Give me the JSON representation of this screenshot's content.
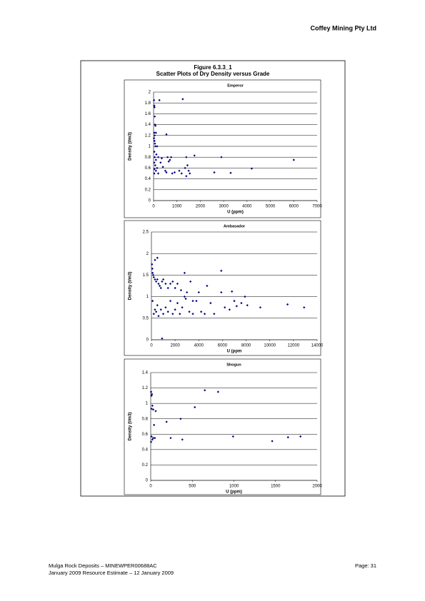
{
  "header": {
    "company": "Coffey Mining Pty Ltd"
  },
  "figure": {
    "number": "Figure 6.3.3_1",
    "title": "Scatter Plots of Dry Density versus Grade"
  },
  "chart_data": [
    {
      "type": "scatter",
      "title": "Emperor",
      "x_label": "U (ppm)",
      "y_label": "Density (t/m3)",
      "color": "#000080",
      "grid": true,
      "xlim": [
        0,
        7000
      ],
      "xticks": [
        0,
        1000,
        2000,
        3000,
        4000,
        5000,
        6000,
        7000
      ],
      "ylim": [
        0,
        2
      ],
      "yticks": [
        0,
        0.2,
        0.4,
        0.6,
        0.8,
        1,
        1.2,
        1.4,
        1.6,
        1.8,
        2
      ],
      "x": [
        20,
        30,
        40,
        50,
        60,
        80,
        30,
        50,
        100,
        20,
        40,
        60,
        80,
        150,
        30,
        120,
        200,
        50,
        100,
        30,
        70,
        150,
        40,
        100,
        200,
        30,
        300,
        350,
        400,
        500,
        550,
        600,
        650,
        700,
        750,
        800,
        900,
        1100,
        1200,
        1350,
        1400,
        1400,
        1450,
        1500,
        1550,
        1750,
        550,
        250,
        1250,
        2600,
        2900,
        3300,
        4200,
        6000
      ],
      "values": [
        1.85,
        1.75,
        1.72,
        1.55,
        1.4,
        1.38,
        1.25,
        1.2,
        1.25,
        1.15,
        1.1,
        1.05,
        1.0,
        1.0,
        0.9,
        0.85,
        0.8,
        0.8,
        0.75,
        0.7,
        0.65,
        0.6,
        0.58,
        0.55,
        0.5,
        0.5,
        0.7,
        0.78,
        0.62,
        0.55,
        0.52,
        0.8,
        0.72,
        0.75,
        0.8,
        0.5,
        0.52,
        0.55,
        0.5,
        0.6,
        0.45,
        0.8,
        0.65,
        0.55,
        0.5,
        0.83,
        1.22,
        1.85,
        1.87,
        0.52,
        0.8,
        0.51,
        0.59,
        0.75
      ]
    },
    {
      "type": "scatter",
      "title": "Ambasador",
      "x_label": "U (ppm",
      "y_label": "Density (t/m3)",
      "color": "#000080",
      "grid": true,
      "xlim": [
        0,
        14000
      ],
      "xticks": [
        0,
        2000,
        4000,
        6000,
        8000,
        10000,
        12000,
        14000
      ],
      "ylim": [
        0,
        2.5
      ],
      "yticks": [
        0,
        0.5,
        1,
        1.5,
        2,
        2.5
      ],
      "x": [
        50,
        80,
        100,
        150,
        200,
        300,
        400,
        500,
        600,
        700,
        800,
        900,
        1000,
        1200,
        1400,
        1600,
        1800,
        2000,
        2200,
        2500,
        2800,
        3000,
        3300,
        4000,
        4700,
        500,
        300,
        100,
        200,
        300,
        400,
        500,
        600,
        800,
        1000,
        1200,
        1400,
        1600,
        1800,
        2000,
        2200,
        2400,
        2600,
        2900,
        3200,
        3500,
        3800,
        4200,
        4500,
        5000,
        5300,
        5900,
        5900,
        6200,
        6600,
        6800,
        7000,
        7200,
        7600,
        7900,
        8100,
        9200,
        11500,
        12900,
        900,
        2800,
        3500
      ],
      "values": [
        1.75,
        1.65,
        1.55,
        1.5,
        1.45,
        1.4,
        1.35,
        1.4,
        1.3,
        1.25,
        1.2,
        1.35,
        1.4,
        1.3,
        1.2,
        1.3,
        1.35,
        1.2,
        1.3,
        1.15,
        1.55,
        1.1,
        1.35,
        1.1,
        1.25,
        1.9,
        1.85,
        0.9,
        0.6,
        0.7,
        0.65,
        0.8,
        0.55,
        0.7,
        0.6,
        0.75,
        0.65,
        0.9,
        0.6,
        0.7,
        0.85,
        0.6,
        0.75,
        0.95,
        0.65,
        0.6,
        0.9,
        0.65,
        0.6,
        0.85,
        0.6,
        1.1,
        1.6,
        0.75,
        0.7,
        1.12,
        0.9,
        0.78,
        0.85,
        1.0,
        0.8,
        0.75,
        0.82,
        0.75,
        0.03,
        1.0,
        0.9
      ]
    },
    {
      "type": "scatter",
      "title": "Shogun",
      "x_label": "U (ppm)",
      "y_label": "Density (t/m3)",
      "color": "#000080",
      "grid": true,
      "xlim": [
        0,
        2000
      ],
      "xticks": [
        0,
        500,
        1000,
        1500,
        2000
      ],
      "ylim": [
        0,
        1.4
      ],
      "yticks": [
        0,
        0.2,
        0.4,
        0.6,
        0.8,
        1,
        1.2,
        1.4
      ],
      "x": [
        5,
        10,
        15,
        20,
        10,
        30,
        60,
        40,
        10,
        20,
        5,
        30,
        50,
        190,
        240,
        360,
        380,
        530,
        650,
        810,
        990,
        1460,
        1650,
        1800
      ],
      "values": [
        1.15,
        1.1,
        1.12,
        0.97,
        0.93,
        0.92,
        0.9,
        0.72,
        0.57,
        0.53,
        0.5,
        0.55,
        0.55,
        0.76,
        0.55,
        0.8,
        0.53,
        0.95,
        1.17,
        1.15,
        0.57,
        0.51,
        0.56,
        0.57
      ]
    }
  ],
  "footer": {
    "line1": "Mulga Rock Deposits – MINEWPER00688AC",
    "line2": "January 2009 Resource Estimate – 12 January 2009",
    "page": "Page:  31"
  }
}
